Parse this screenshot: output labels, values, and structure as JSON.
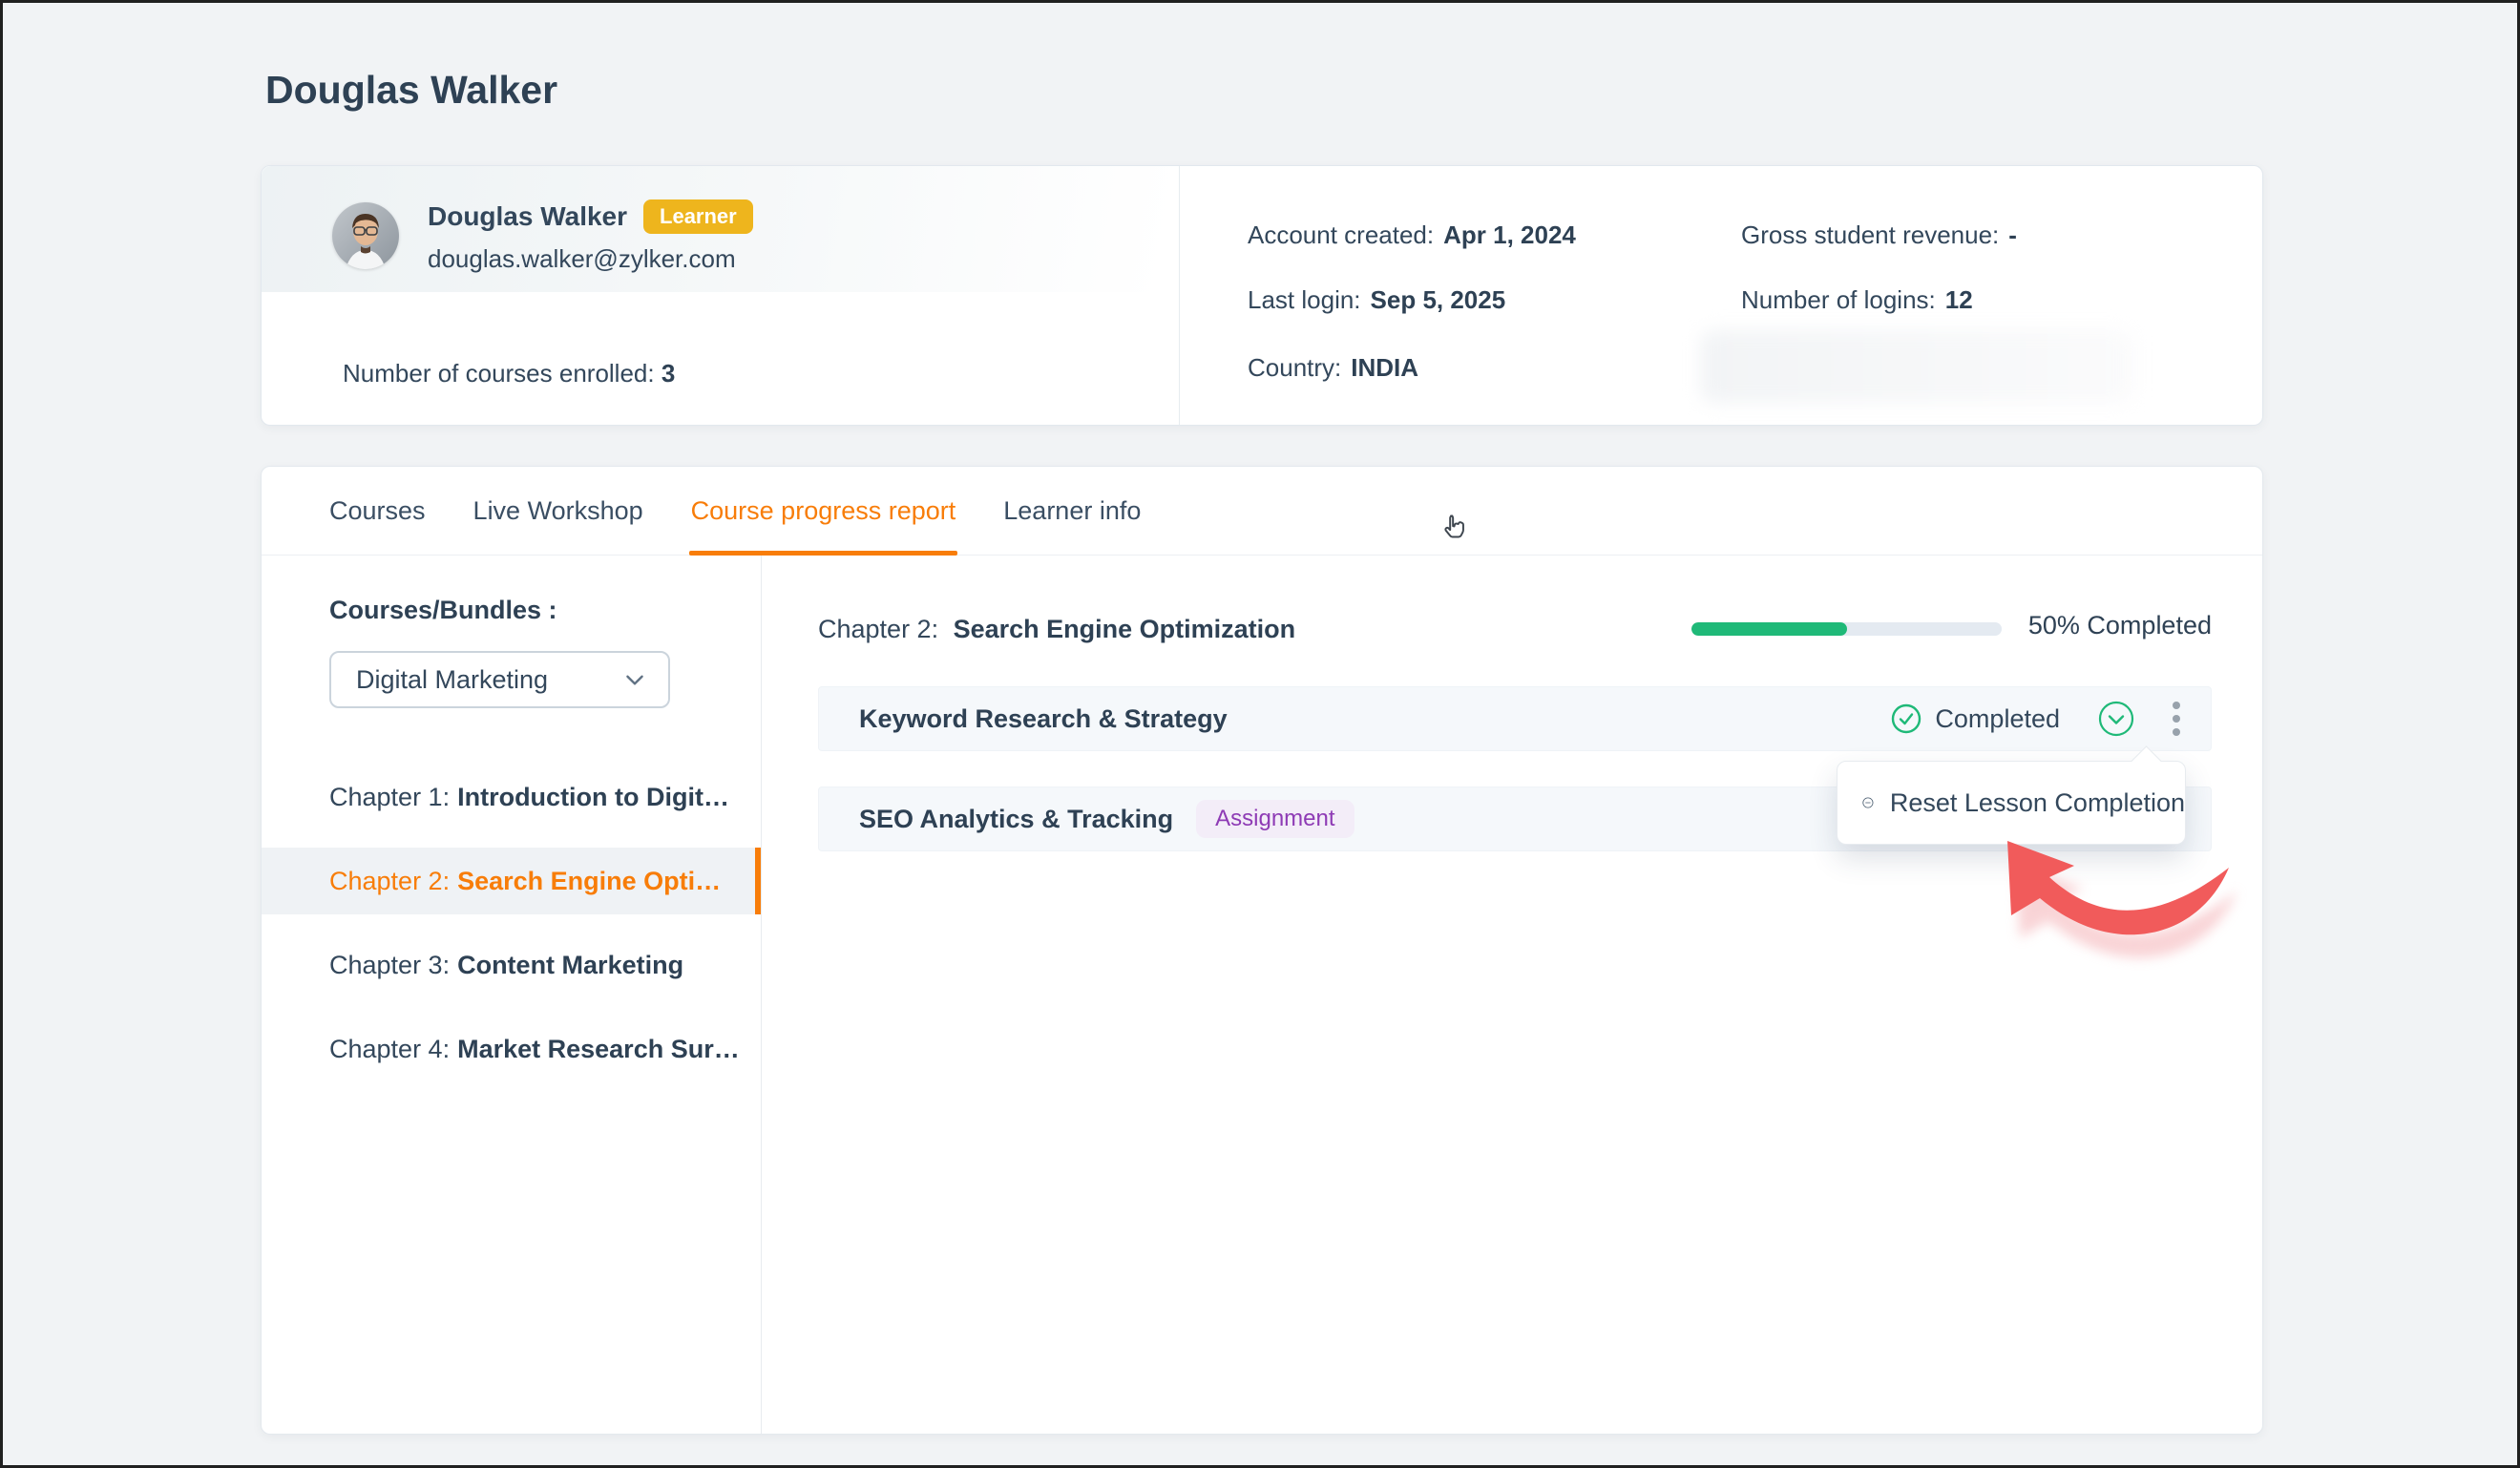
{
  "page_title": "Douglas Walker",
  "profile_card": {
    "name": "Douglas Walker",
    "role_badge": "Learner",
    "email": "douglas.walker@zylker.com",
    "enrolled": {
      "label": "Number of courses enrolled:",
      "value": "3"
    },
    "details": [
      {
        "label": "Account created:",
        "value": "Apr 1, 2024"
      },
      {
        "label": "Last login:",
        "value": "Sep 5, 2025"
      },
      {
        "label": "Country:",
        "value": "INDIA"
      },
      {
        "label": "Gross student revenue:",
        "value": "-"
      },
      {
        "label": "Number of logins:",
        "value": "12"
      }
    ]
  },
  "tabs": [
    {
      "label": "Courses",
      "active": false
    },
    {
      "label": "Live Workshop",
      "active": false
    },
    {
      "label": "Course progress report",
      "active": true
    },
    {
      "label": "Learner info",
      "active": false
    }
  ],
  "sidebar": {
    "heading": "Courses/Bundles :",
    "course_dropdown": {
      "value": "Digital Marketing"
    },
    "chapters": [
      {
        "prefix": "Chapter 1:",
        "title": "Introduction to Digit…",
        "active": false
      },
      {
        "prefix": "Chapter 2:",
        "title": "Search Engine Opti…",
        "active": true
      },
      {
        "prefix": "Chapter 3:",
        "title": "Content Marketing",
        "active": false
      },
      {
        "prefix": "Chapter 4:",
        "title": "Market Research Sur…",
        "active": false
      }
    ]
  },
  "main": {
    "chapter_header": {
      "prefix": "Chapter 2:",
      "title": "Search Engine Optimization"
    },
    "progress": {
      "percent": 50,
      "label": "50% Completed"
    },
    "lessons": [
      {
        "title": "Keyword Research & Strategy",
        "status": "Completed"
      },
      {
        "title": "SEO Analytics & Tracking",
        "badge": "Assignment"
      }
    ],
    "lesson_menu": [
      {
        "label": "Reset Lesson Completion"
      }
    ]
  },
  "icons": {
    "check_icon": "circled check",
    "chevron_down_icon": "circled chevron down",
    "kebab_icon": "vertical three dots",
    "minus_icon": "circled minus",
    "dropdown_chevron_icon": "chevron down",
    "cursor_icon": "hand pointer",
    "annotation_arrow": "curved red arrow"
  },
  "colors": {
    "accent_orange": "#F87D09",
    "success_green": "#1FB978",
    "badge_yellow": "#EEB51D",
    "assignment_purple": "#8E3BB5",
    "text_dark": "#2E4154",
    "annotation_red": "#F15B5B",
    "page_bg": "#F1F3F5"
  }
}
